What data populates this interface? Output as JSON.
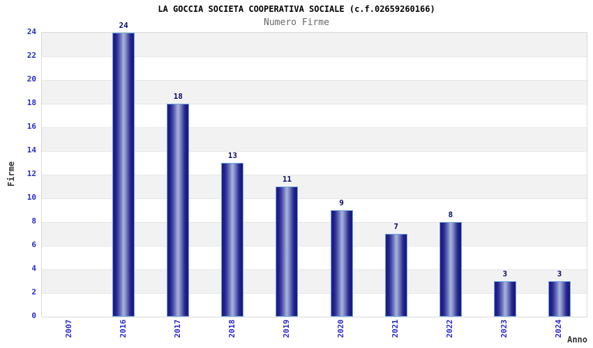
{
  "chart_data": {
    "type": "bar",
    "title": "LA GOCCIA SOCIETA COOPERATIVA SOCIALE (c.f.02659260166)",
    "subtitle": "Numero Firme",
    "xlabel": "Anno",
    "ylabel": "Firme",
    "categories": [
      "2007",
      "2016",
      "2017",
      "2018",
      "2019",
      "2020",
      "2021",
      "2022",
      "2023",
      "2024"
    ],
    "values": [
      0,
      24,
      18,
      13,
      11,
      9,
      7,
      8,
      3,
      3
    ],
    "ylim": [
      0,
      24
    ],
    "ytick_step": 2,
    "legend": "none",
    "grid": "horizontal alternating bands",
    "colors": {
      "tick_label_blue": "#2929cc",
      "value_label_navy": "#0a0a6e",
      "title_color": "#000000",
      "subtitle_color": "#666666",
      "axis_name_color": "#333333",
      "bar_edge_navy": "#1a1a82",
      "bar_center_light": "#aab5da",
      "bar_border": "#6ca6e0",
      "band_gray": "#f2f2f2",
      "band_white": "#ffffff",
      "grid_line": "#e5e5e5",
      "plot_border": "#d9d9d9"
    }
  }
}
